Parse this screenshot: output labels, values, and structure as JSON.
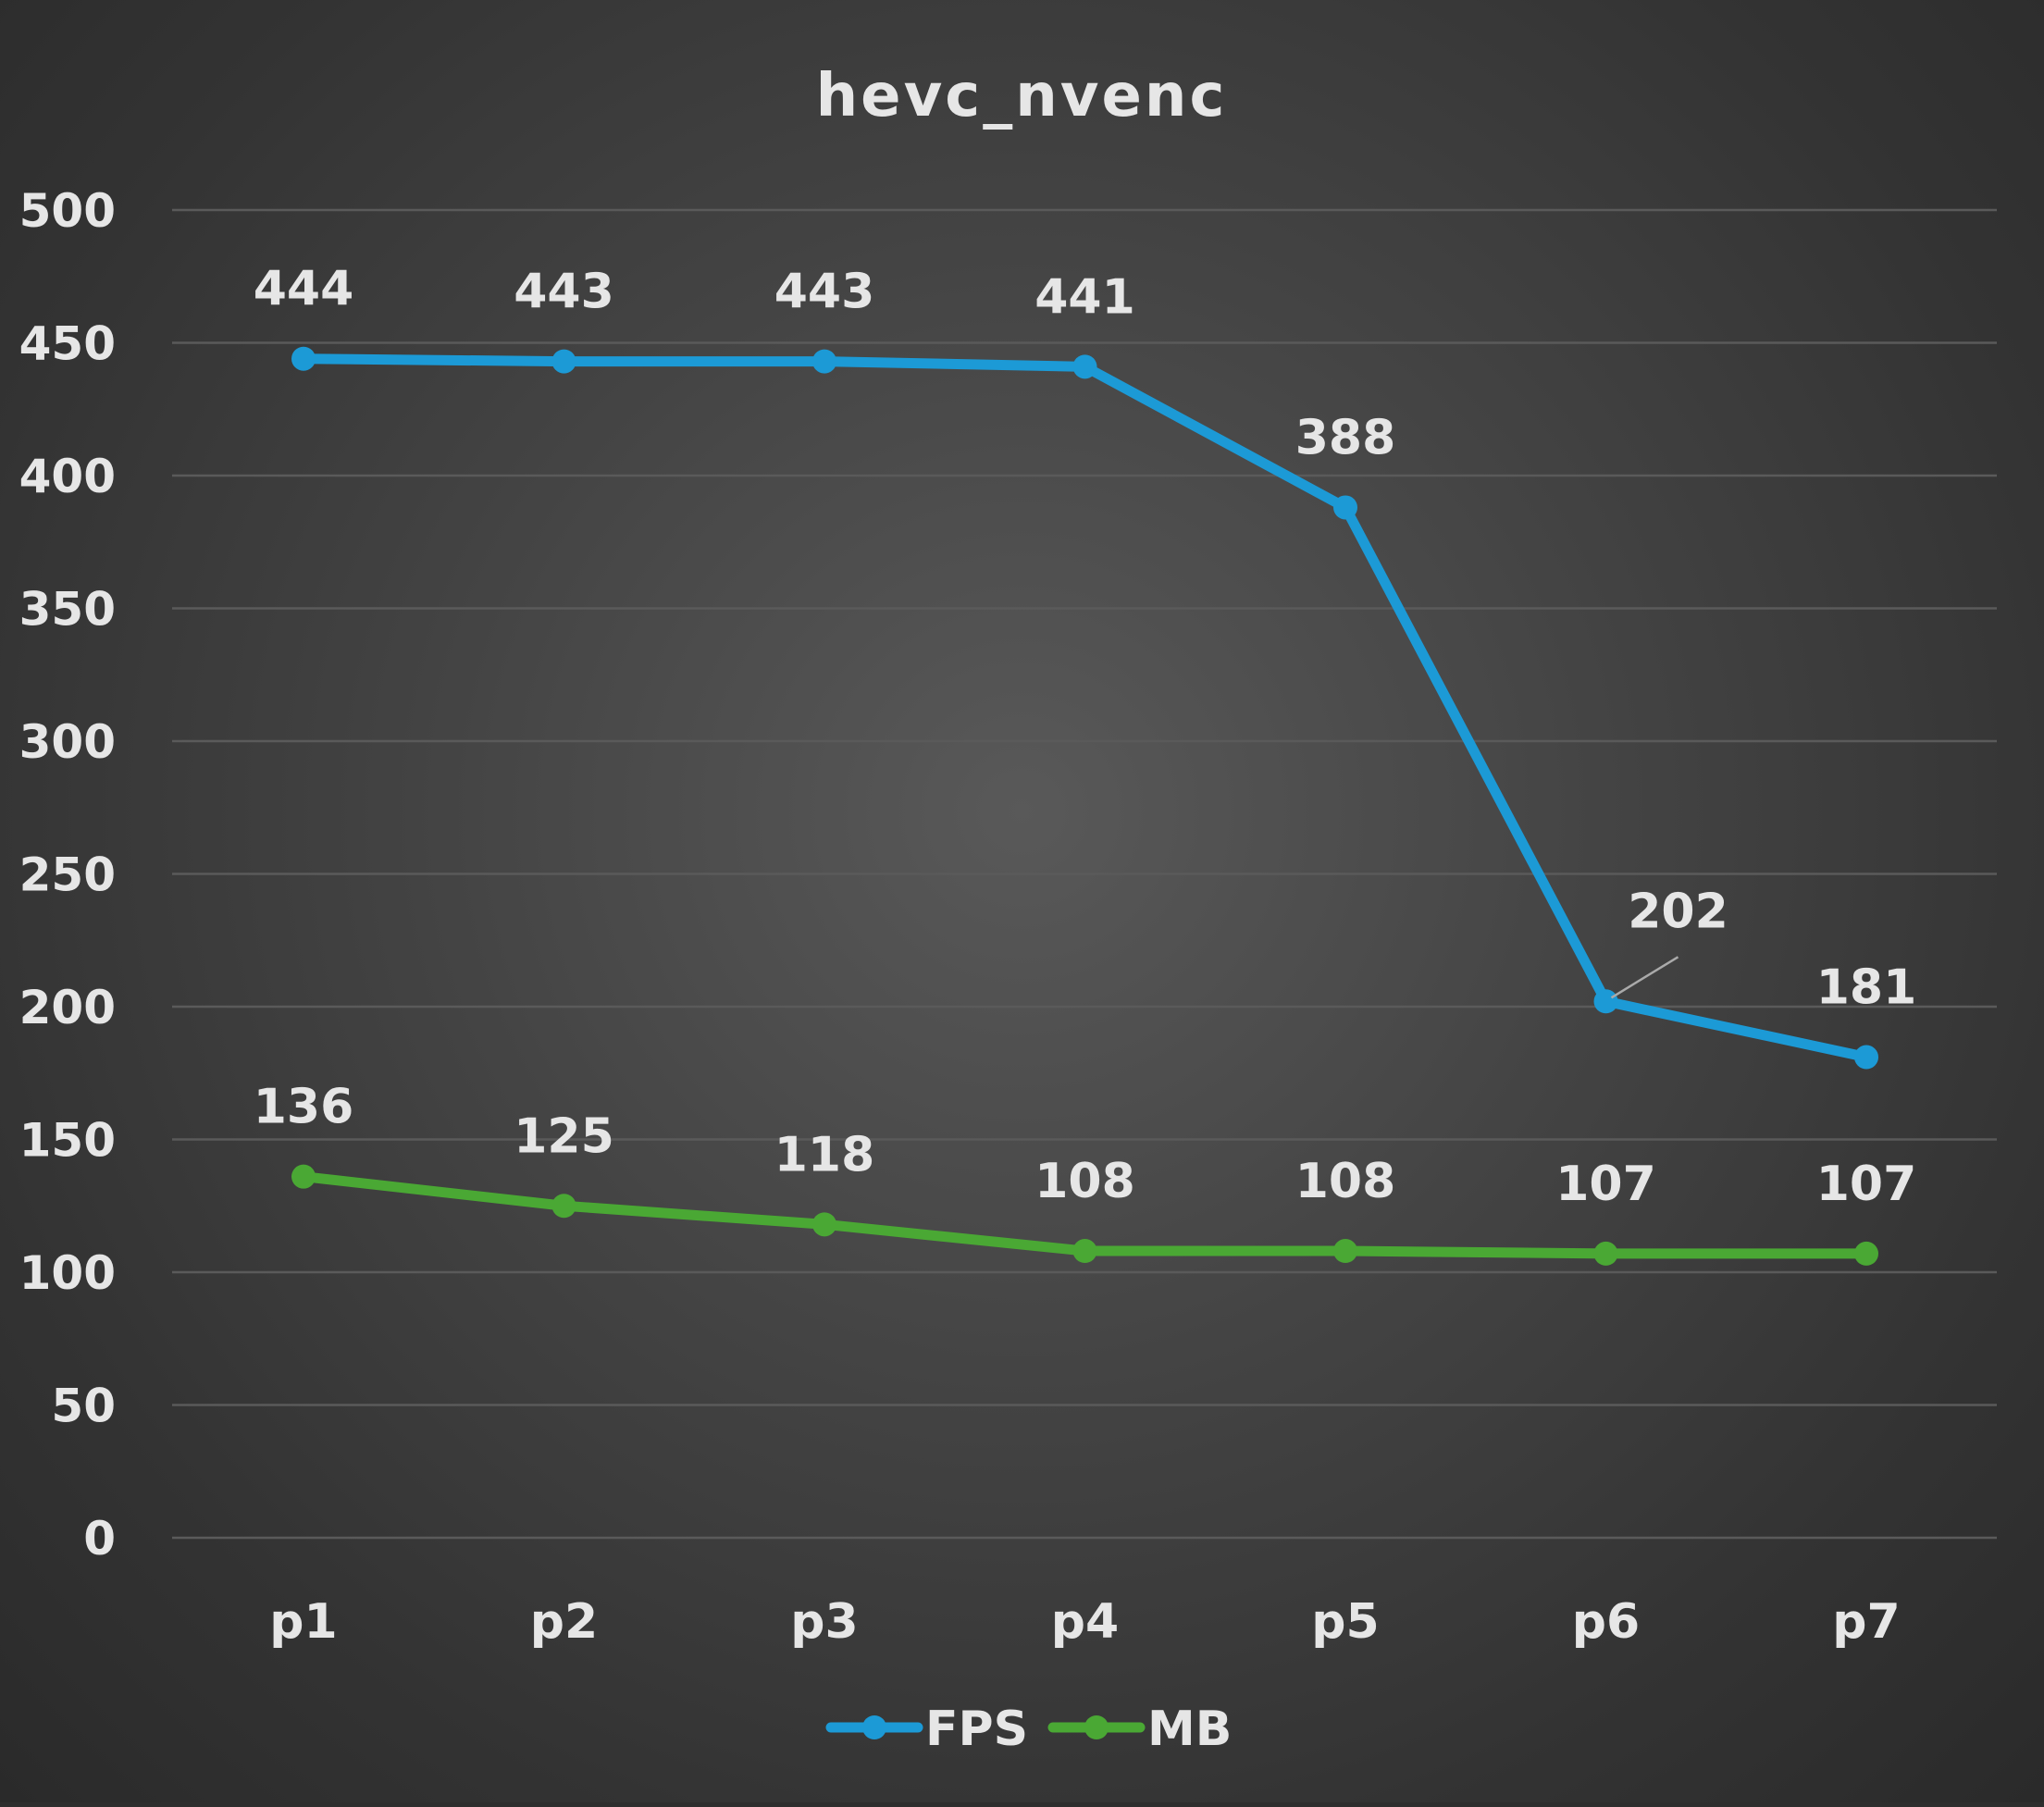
{
  "chart_data": {
    "type": "line",
    "title": "hevc_nvenc",
    "xlabel": "",
    "ylabel": "",
    "categories": [
      "p1",
      "p2",
      "p3",
      "p4",
      "p5",
      "p6",
      "p7"
    ],
    "ylim": [
      0,
      500
    ],
    "yticks": [
      0,
      50,
      100,
      150,
      200,
      250,
      300,
      350,
      400,
      450,
      500
    ],
    "grid": true,
    "legend_position": "bottom",
    "series": [
      {
        "name": "FPS",
        "color": "#1c9ad6",
        "values": [
          444,
          443,
          443,
          441,
          388,
          202,
          181
        ]
      },
      {
        "name": "MB",
        "color": "#4aa834",
        "values": [
          136,
          125,
          118,
          108,
          108,
          107,
          107
        ]
      }
    ]
  }
}
